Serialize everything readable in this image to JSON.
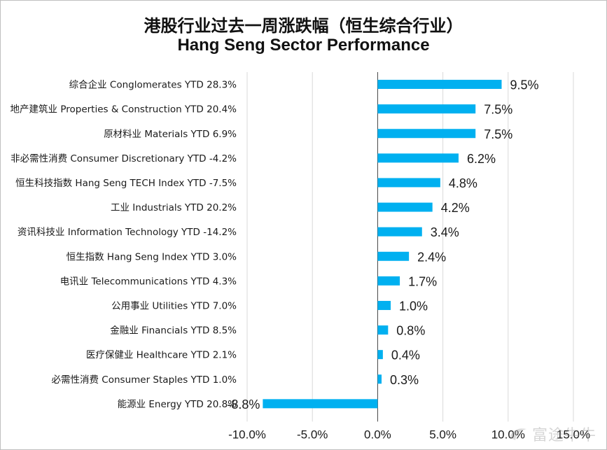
{
  "title_cn": "港股行业过去一周涨跌幅（恒生综合行业）",
  "title_en": "Hang Seng Sector Performance",
  "watermark": {
    "text": "富途牛牛",
    "icon": "futu-logo-icon"
  },
  "colors": {
    "bar": "#00b0f0",
    "grid": "#d9d9d9",
    "axis": "#404040"
  },
  "chart_data": {
    "type": "bar",
    "orientation": "horizontal",
    "title": "港股行业过去一周涨跌幅（恒生综合行业） Hang Seng Sector Performance",
    "xlim": [
      -10,
      15
    ],
    "xticks": [
      "-10.0%",
      "-5.0%",
      "0.0%",
      "5.0%",
      "10.0%",
      "15.0%"
    ],
    "xtick_values": [
      -10,
      -5,
      0,
      5,
      10,
      15
    ],
    "grid": true,
    "categories": [
      "综合企业 Conglomerates YTD 28.3%",
      "地产建筑业 Properties & Construction YTD 20.4%",
      "原材料业 Materials YTD 6.9%",
      "非必需性消费 Consumer Discretionary YTD -4.2%",
      "恒生科技指数 Hang Seng TECH Index YTD -7.5%",
      "工业 Industrials YTD 20.2%",
      "资讯科技业 Information Technology YTD -14.2%",
      "恒生指数 Hang Seng Index YTD 3.0%",
      "电讯业 Telecommunications YTD 4.3%",
      "公用事业 Utilities YTD 7.0%",
      "金融业 Financials YTD 8.5%",
      "医疗保健业 Healthcare YTD 2.1%",
      "必需性消费 Consumer Staples YTD 1.0%",
      "能源业 Energy YTD 20.8%"
    ],
    "values": [
      9.5,
      7.5,
      7.5,
      6.2,
      4.8,
      4.2,
      3.4,
      2.4,
      1.7,
      1.0,
      0.8,
      0.4,
      0.3,
      -8.8
    ],
    "data_labels": [
      "9.5%",
      "7.5%",
      "7.5%",
      "6.2%",
      "4.8%",
      "4.2%",
      "3.4%",
      "2.4%",
      "1.7%",
      "1.0%",
      "0.8%",
      "0.4%",
      "0.3%",
      "-8.8%"
    ]
  }
}
